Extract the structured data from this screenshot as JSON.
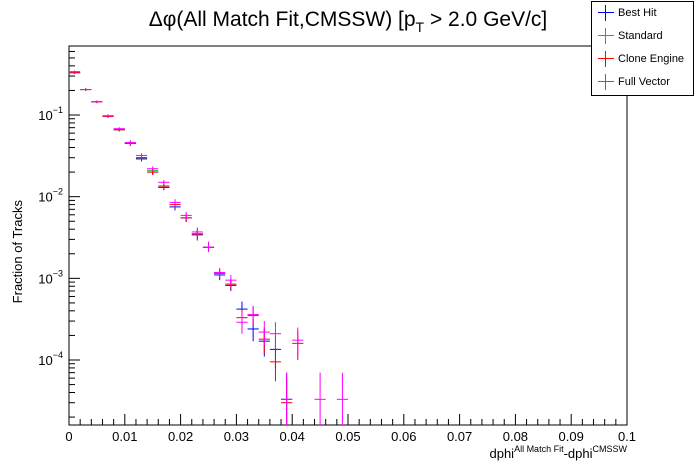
{
  "chart_data": {
    "type": "scatter",
    "title_prefix": "Δφ(All Match Fit,CMSSW) [p",
    "title_sub": "T",
    "title_suffix": " > 2.0 GeV/c]",
    "ylabel": "Fraction of Tracks",
    "xlabel_main": "dphi",
    "xlabel_sup1": "All Match Fit",
    "xlabel_mid": "-dphi",
    "xlabel_sup2": "CMSSW",
    "xlim": [
      0,
      0.1
    ],
    "ylim": [
      1.6e-05,
      0.7
    ],
    "yscale": "log",
    "x_ticks": [
      "0",
      "0.01",
      "0.02",
      "0.03",
      "0.04",
      "0.05",
      "0.06",
      "0.07",
      "0.08",
      "0.09",
      "0.1"
    ],
    "y_ticks": [
      {
        "base": "10",
        "exp": "−1",
        "value": 0.1
      },
      {
        "base": "10",
        "exp": "−2",
        "value": 0.01
      },
      {
        "base": "10",
        "exp": "−3",
        "value": 0.001
      },
      {
        "base": "10",
        "exp": "−4",
        "value": 0.0001
      }
    ],
    "bin_half_width": 0.001,
    "legend_position": "top-right",
    "series": [
      {
        "name": "Best Hit",
        "color": "#0000ff",
        "points": [
          {
            "x": 0.001,
            "y": 0.33,
            "lo": 0.32,
            "hi": 0.34
          },
          {
            "x": 0.003,
            "y": 0.205,
            "lo": 0.198,
            "hi": 0.212
          },
          {
            "x": 0.005,
            "y": 0.145,
            "lo": 0.14,
            "hi": 0.15
          },
          {
            "x": 0.007,
            "y": 0.097,
            "lo": 0.093,
            "hi": 0.101
          },
          {
            "x": 0.009,
            "y": 0.066,
            "lo": 0.063,
            "hi": 0.069
          },
          {
            "x": 0.011,
            "y": 0.045,
            "lo": 0.042,
            "hi": 0.048
          },
          {
            "x": 0.013,
            "y": 0.029,
            "lo": 0.027,
            "hi": 0.031
          },
          {
            "x": 0.015,
            "y": 0.02,
            "lo": 0.0185,
            "hi": 0.0215
          },
          {
            "x": 0.017,
            "y": 0.013,
            "lo": 0.012,
            "hi": 0.014
          },
          {
            "x": 0.019,
            "y": 0.0075,
            "lo": 0.0068,
            "hi": 0.0082
          },
          {
            "x": 0.021,
            "y": 0.0055,
            "lo": 0.0049,
            "hi": 0.0061
          },
          {
            "x": 0.023,
            "y": 0.0035,
            "lo": 0.003,
            "hi": 0.004
          },
          {
            "x": 0.025,
            "y": 0.0024,
            "lo": 0.0021,
            "hi": 0.0028
          },
          {
            "x": 0.027,
            "y": 0.0011,
            "lo": 0.00095,
            "hi": 0.00125
          },
          {
            "x": 0.029,
            "y": 0.00082,
            "lo": 0.0007,
            "hi": 0.00095
          },
          {
            "x": 0.031,
            "y": 0.00042,
            "lo": 0.00032,
            "hi": 0.00052
          },
          {
            "x": 0.033,
            "y": 0.00024,
            "lo": 0.00017,
            "hi": 0.00032
          },
          {
            "x": 0.035,
            "y": 0.00017,
            "lo": 0.00011,
            "hi": 0.00024
          },
          {
            "x": 0.037,
            "y": 0.000135,
            "lo": 8e-05,
            "hi": 0.0002
          },
          {
            "x": 0.039,
            "y": 3.3e-05,
            "lo": 1.6e-05,
            "hi": 7e-05
          }
        ]
      },
      {
        "name": "Standard",
        "color": "#00cc00",
        "points": [
          {
            "x": 0.001,
            "y": 0.33,
            "lo": 0.32,
            "hi": 0.34
          },
          {
            "x": 0.003,
            "y": 0.205,
            "lo": 0.198,
            "hi": 0.212
          },
          {
            "x": 0.005,
            "y": 0.145,
            "lo": 0.14,
            "hi": 0.15
          },
          {
            "x": 0.007,
            "y": 0.097,
            "lo": 0.093,
            "hi": 0.101
          },
          {
            "x": 0.009,
            "y": 0.066,
            "lo": 0.063,
            "hi": 0.069
          },
          {
            "x": 0.011,
            "y": 0.045,
            "lo": 0.042,
            "hi": 0.048
          },
          {
            "x": 0.013,
            "y": 0.03,
            "lo": 0.028,
            "hi": 0.032
          },
          {
            "x": 0.015,
            "y": 0.021,
            "lo": 0.0195,
            "hi": 0.0225
          },
          {
            "x": 0.017,
            "y": 0.0135,
            "lo": 0.0125,
            "hi": 0.0145
          }
        ]
      },
      {
        "name": "Clone Engine",
        "color": "#ff0000",
        "points": [
          {
            "x": 0.001,
            "y": 0.33,
            "lo": 0.32,
            "hi": 0.34
          },
          {
            "x": 0.003,
            "y": 0.205,
            "lo": 0.198,
            "hi": 0.212
          },
          {
            "x": 0.005,
            "y": 0.145,
            "lo": 0.14,
            "hi": 0.15
          },
          {
            "x": 0.007,
            "y": 0.096,
            "lo": 0.092,
            "hi": 0.1
          },
          {
            "x": 0.009,
            "y": 0.066,
            "lo": 0.063,
            "hi": 0.069
          },
          {
            "x": 0.011,
            "y": 0.045,
            "lo": 0.042,
            "hi": 0.048
          },
          {
            "x": 0.013,
            "y": 0.03,
            "lo": 0.028,
            "hi": 0.032
          },
          {
            "x": 0.015,
            "y": 0.02,
            "lo": 0.0185,
            "hi": 0.0215
          },
          {
            "x": 0.017,
            "y": 0.0135,
            "lo": 0.0125,
            "hi": 0.0145
          },
          {
            "x": 0.019,
            "y": 0.008,
            "lo": 0.0072,
            "hi": 0.0088
          },
          {
            "x": 0.021,
            "y": 0.0055,
            "lo": 0.0049,
            "hi": 0.0061
          },
          {
            "x": 0.023,
            "y": 0.0034,
            "lo": 0.0029,
            "hi": 0.0039
          },
          {
            "x": 0.025,
            "y": 0.0024,
            "lo": 0.0021,
            "hi": 0.0028
          },
          {
            "x": 0.027,
            "y": 0.00115,
            "lo": 0.001,
            "hi": 0.0013
          },
          {
            "x": 0.029,
            "y": 0.00085,
            "lo": 0.00073,
            "hi": 0.00098
          },
          {
            "x": 0.031,
            "y": 0.00033,
            "lo": 0.00025,
            "hi": 0.00042
          },
          {
            "x": 0.033,
            "y": 0.00035,
            "lo": 0.00026,
            "hi": 0.00045
          },
          {
            "x": 0.035,
            "y": 0.00018,
            "lo": 0.00012,
            "hi": 0.00025
          },
          {
            "x": 0.037,
            "y": 9.5e-05,
            "lo": 5.5e-05,
            "hi": 0.00014
          },
          {
            "x": 0.039,
            "y": 3e-05,
            "lo": 1.6e-05,
            "hi": 6e-05
          },
          {
            "x": 0.041,
            "y": 0.00016,
            "lo": 0.0001,
            "hi": 0.00023
          }
        ]
      },
      {
        "name": "Full Vector",
        "color": "#ff00ff",
        "points": [
          {
            "x": 0.001,
            "y": 0.34,
            "lo": 0.33,
            "hi": 0.35
          },
          {
            "x": 0.003,
            "y": 0.205,
            "lo": 0.198,
            "hi": 0.212
          },
          {
            "x": 0.005,
            "y": 0.145,
            "lo": 0.14,
            "hi": 0.15
          },
          {
            "x": 0.007,
            "y": 0.098,
            "lo": 0.094,
            "hi": 0.102
          },
          {
            "x": 0.009,
            "y": 0.068,
            "lo": 0.065,
            "hi": 0.071
          },
          {
            "x": 0.011,
            "y": 0.046,
            "lo": 0.043,
            "hi": 0.049
          },
          {
            "x": 0.013,
            "y": 0.032,
            "lo": 0.03,
            "hi": 0.034
          },
          {
            "x": 0.015,
            "y": 0.022,
            "lo": 0.0205,
            "hi": 0.0235
          },
          {
            "x": 0.017,
            "y": 0.015,
            "lo": 0.014,
            "hi": 0.016
          },
          {
            "x": 0.019,
            "y": 0.0085,
            "lo": 0.0077,
            "hi": 0.0093
          },
          {
            "x": 0.021,
            "y": 0.0059,
            "lo": 0.0053,
            "hi": 0.0065
          },
          {
            "x": 0.023,
            "y": 0.0037,
            "lo": 0.0032,
            "hi": 0.0042
          },
          {
            "x": 0.025,
            "y": 0.0024,
            "lo": 0.0021,
            "hi": 0.0028
          },
          {
            "x": 0.027,
            "y": 0.00118,
            "lo": 0.00102,
            "hi": 0.00134
          },
          {
            "x": 0.029,
            "y": 0.00095,
            "lo": 0.00082,
            "hi": 0.0011
          },
          {
            "x": 0.031,
            "y": 0.00029,
            "lo": 0.00021,
            "hi": 0.00038
          },
          {
            "x": 0.033,
            "y": 0.00036,
            "lo": 0.00027,
            "hi": 0.00046
          },
          {
            "x": 0.035,
            "y": 0.00022,
            "lo": 0.00015,
            "hi": 0.0003
          },
          {
            "x": 0.037,
            "y": 0.00021,
            "lo": 0.00014,
            "hi": 0.00029
          },
          {
            "x": 0.039,
            "y": 3.3e-05,
            "lo": 1.6e-05,
            "hi": 7e-05
          },
          {
            "x": 0.041,
            "y": 0.000175,
            "lo": 0.00011,
            "hi": 0.00025
          },
          {
            "x": 0.045,
            "y": 3.3e-05,
            "lo": 1.6e-05,
            "hi": 7e-05
          },
          {
            "x": 0.049,
            "y": 3.3e-05,
            "lo": 1.6e-05,
            "hi": 7e-05
          }
        ]
      }
    ]
  }
}
